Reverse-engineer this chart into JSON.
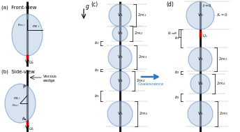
{
  "bg_color": "#ffffff",
  "droplet_fill": "#b8cce4",
  "droplet_edge": "#4472c4",
  "wire_color": "#1a1a1a",
  "red_color": "#cc0000",
  "arrow_color": "#2e75b6",
  "label_color": "#000000",
  "anno_color": "#595959",
  "panel_a_label": "(a)  Front-view",
  "panel_b_label": "(b)  Side-view",
  "panel_c_label": "(c)",
  "panel_d_label": "(d)",
  "viscous_wedge": "Viscous\nwedge",
  "coalescence_label": "Coalescence",
  "droplet_blue_alpha": 0.55
}
